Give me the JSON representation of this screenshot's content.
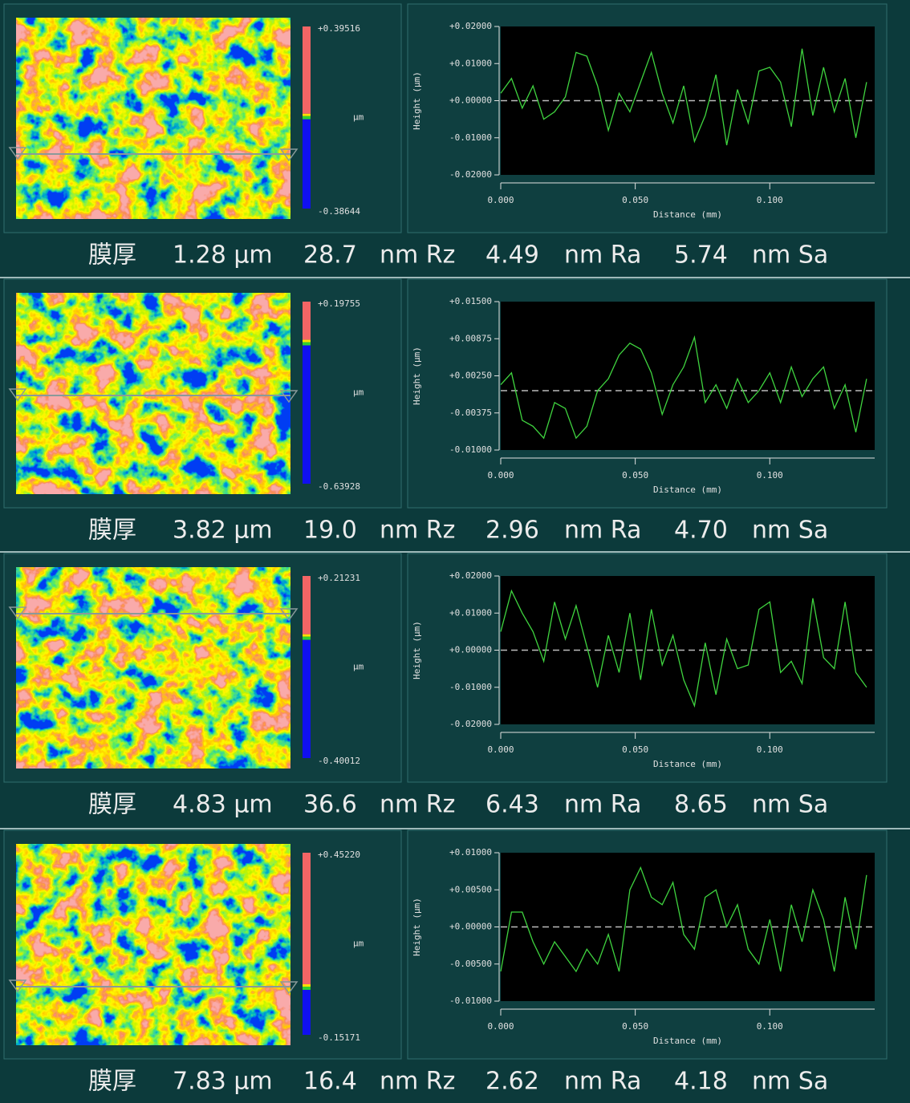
{
  "panels": [
    {
      "map_scale": {
        "max": {
          "value": 0.39516,
          "label": "+0.39516"
        },
        "min": {
          "value": -0.38644,
          "label": "-0.38644"
        },
        "unit": "µm"
      },
      "chart_data": {
        "type": "line",
        "xlabel": "Distance (mm)",
        "ylabel": "Height (µm)",
        "color": "#3fd43f",
        "zero_line": true,
        "x": [
          0,
          0.004,
          0.008,
          0.012,
          0.016,
          0.02,
          0.024,
          0.028,
          0.032,
          0.036,
          0.04,
          0.044,
          0.048,
          0.052,
          0.056,
          0.06,
          0.064,
          0.068,
          0.072,
          0.076,
          0.08,
          0.084,
          0.088,
          0.092,
          0.096,
          0.1,
          0.104,
          0.108,
          0.112,
          0.116,
          0.12,
          0.124,
          0.128,
          0.132,
          0.136
        ],
        "values": [
          0.002,
          0.006,
          -0.002,
          0.004,
          -0.005,
          -0.003,
          0.001,
          0.013,
          0.012,
          0.004,
          -0.008,
          0.002,
          -0.003,
          0.005,
          0.013,
          0.002,
          -0.006,
          0.004,
          -0.011,
          -0.004,
          0.007,
          -0.012,
          0.003,
          -0.006,
          0.008,
          0.009,
          0.005,
          -0.007,
          0.014,
          -0.004,
          0.009,
          -0.003,
          0.006,
          -0.01,
          0.005
        ],
        "xlim": [
          0,
          0.139
        ],
        "ylim": [
          -0.02,
          0.02
        ],
        "xticks": [
          {
            "value": 0,
            "label": "0.000"
          },
          {
            "value": 0.05,
            "label": "0.050"
          },
          {
            "value": 0.1,
            "label": "0.100"
          }
        ],
        "yticks": [
          {
            "value": 0.02,
            "label": "+0.02000"
          },
          {
            "value": 0.01,
            "label": "+0.01000"
          },
          {
            "value": 0,
            "label": "+0.00000"
          },
          {
            "value": -0.01,
            "label": "-0.01000"
          },
          {
            "value": -0.02,
            "label": "-0.02000"
          }
        ]
      },
      "caption": [
        "膜厚",
        "1.28 µm",
        "28.7",
        "nm Rz",
        "4.49",
        "nm Ra",
        "5.74",
        "nm Sa"
      ]
    },
    {
      "map_scale": {
        "max": {
          "value": 0.19755,
          "label": "+0.19755"
        },
        "min": {
          "value": -0.63928,
          "label": "-0.63928"
        },
        "unit": "µm"
      },
      "chart_data": {
        "type": "line",
        "xlabel": "Distance (mm)",
        "ylabel": "Height (µm)",
        "color": "#3fd43f",
        "zero_line": true,
        "x": [
          0,
          0.004,
          0.008,
          0.012,
          0.016,
          0.02,
          0.024,
          0.028,
          0.032,
          0.036,
          0.04,
          0.044,
          0.048,
          0.052,
          0.056,
          0.06,
          0.064,
          0.068,
          0.072,
          0.076,
          0.08,
          0.084,
          0.088,
          0.092,
          0.096,
          0.1,
          0.104,
          0.108,
          0.112,
          0.116,
          0.12,
          0.124,
          0.128,
          0.132,
          0.136
        ],
        "values": [
          0.001,
          0.003,
          -0.005,
          -0.006,
          -0.008,
          -0.002,
          -0.003,
          -0.008,
          -0.006,
          0,
          0.002,
          0.006,
          0.008,
          0.007,
          0.003,
          -0.004,
          0.001,
          0.004,
          0.009,
          -0.002,
          0.001,
          -0.003,
          0.002,
          -0.002,
          0,
          0.003,
          -0.002,
          0.004,
          -0.001,
          0.002,
          0.004,
          -0.003,
          0.001,
          -0.007,
          0.002
        ],
        "xlim": [
          0,
          0.139
        ],
        "ylim": [
          -0.01,
          0.015
        ],
        "xticks": [
          {
            "value": 0,
            "label": "0.000"
          },
          {
            "value": 0.05,
            "label": "0.050"
          },
          {
            "value": 0.1,
            "label": "0.100"
          }
        ],
        "yticks": [
          {
            "value": 0.015,
            "label": "+0.01500"
          },
          {
            "value": 0.00875,
            "label": "+0.00875"
          },
          {
            "value": 0.0025,
            "label": "+0.00250"
          },
          {
            "value": -0.00375,
            "label": "-0.00375"
          },
          {
            "value": -0.01,
            "label": "-0.01000"
          }
        ]
      },
      "caption": [
        "膜厚",
        "3.82 µm",
        "19.0",
        "nm Rz",
        "2.96",
        "nm Ra",
        "4.70",
        "nm Sa"
      ]
    },
    {
      "map_scale": {
        "max": {
          "value": 0.21231,
          "label": "+0.21231"
        },
        "min": {
          "value": -0.40012,
          "label": "-0.40012"
        },
        "unit": "µm"
      },
      "chart_data": {
        "type": "line",
        "xlabel": "Distance (mm)",
        "ylabel": "Height (µm)",
        "color": "#3fd43f",
        "zero_line": true,
        "x": [
          0,
          0.004,
          0.008,
          0.012,
          0.016,
          0.02,
          0.024,
          0.028,
          0.032,
          0.036,
          0.04,
          0.044,
          0.048,
          0.052,
          0.056,
          0.06,
          0.064,
          0.068,
          0.072,
          0.076,
          0.08,
          0.084,
          0.088,
          0.092,
          0.096,
          0.1,
          0.104,
          0.108,
          0.112,
          0.116,
          0.12,
          0.124,
          0.128,
          0.132,
          0.136
        ],
        "values": [
          0.005,
          0.016,
          0.01,
          0.005,
          -0.003,
          0.013,
          0.003,
          0.012,
          0.001,
          -0.01,
          0.004,
          -0.006,
          0.01,
          -0.008,
          0.011,
          -0.004,
          0.004,
          -0.008,
          -0.015,
          0.002,
          -0.012,
          0.003,
          -0.005,
          -0.004,
          0.011,
          0.013,
          -0.006,
          -0.003,
          -0.009,
          0.014,
          -0.002,
          -0.005,
          0.013,
          -0.006,
          -0.01
        ],
        "xlim": [
          0,
          0.139
        ],
        "ylim": [
          -0.02,
          0.02
        ],
        "xticks": [
          {
            "value": 0,
            "label": "0.000"
          },
          {
            "value": 0.05,
            "label": "0.050"
          },
          {
            "value": 0.1,
            "label": "0.100"
          }
        ],
        "yticks": [
          {
            "value": 0.02,
            "label": "+0.02000"
          },
          {
            "value": 0.01,
            "label": "+0.01000"
          },
          {
            "value": 0,
            "label": "+0.00000"
          },
          {
            "value": -0.01,
            "label": "-0.01000"
          },
          {
            "value": -0.02,
            "label": "-0.02000"
          }
        ]
      },
      "caption": [
        "膜厚",
        "4.83 µm",
        "36.6",
        "nm Rz",
        "6.43",
        "nm Ra",
        "8.65",
        "nm Sa"
      ]
    },
    {
      "map_scale": {
        "max": {
          "value": 0.4522,
          "label": "+0.45220"
        },
        "min": {
          "value": -0.15171,
          "label": "-0.15171"
        },
        "unit": "µm"
      },
      "chart_data": {
        "type": "line",
        "xlabel": "Distance (mm)",
        "ylabel": "Height (µm)",
        "color": "#3fd43f",
        "zero_line": true,
        "x": [
          0,
          0.004,
          0.008,
          0.012,
          0.016,
          0.02,
          0.024,
          0.028,
          0.032,
          0.036,
          0.04,
          0.044,
          0.048,
          0.052,
          0.056,
          0.06,
          0.064,
          0.068,
          0.072,
          0.076,
          0.08,
          0.084,
          0.088,
          0.092,
          0.096,
          0.1,
          0.104,
          0.108,
          0.112,
          0.116,
          0.12,
          0.124,
          0.128,
          0.132,
          0.136
        ],
        "values": [
          -0.006,
          0.002,
          0.002,
          -0.002,
          -0.005,
          -0.002,
          -0.004,
          -0.006,
          -0.003,
          -0.005,
          -0.001,
          -0.006,
          0.005,
          0.008,
          0.004,
          0.003,
          0.006,
          -0.001,
          -0.003,
          0.004,
          0.005,
          0,
          0.003,
          -0.003,
          -0.005,
          0.001,
          -0.006,
          0.003,
          -0.002,
          0.005,
          0.001,
          -0.006,
          0.004,
          -0.003,
          0.007
        ],
        "xlim": [
          0,
          0.139
        ],
        "ylim": [
          -0.01,
          0.01
        ],
        "xticks": [
          {
            "value": 0,
            "label": "0.000"
          },
          {
            "value": 0.05,
            "label": "0.050"
          },
          {
            "value": 0.1,
            "label": "0.100"
          }
        ],
        "yticks": [
          {
            "value": 0.01,
            "label": "+0.01000"
          },
          {
            "value": 0.005,
            "label": "+0.00500"
          },
          {
            "value": 0,
            "label": "+0.00000"
          },
          {
            "value": -0.005,
            "label": "-0.00500"
          },
          {
            "value": -0.01,
            "label": "-0.01000"
          }
        ]
      },
      "caption": [
        "膜厚",
        "7.83 µm",
        "16.4",
        "nm Rz",
        "2.62",
        "nm Ra",
        "4.18",
        "nm Sa"
      ]
    }
  ]
}
